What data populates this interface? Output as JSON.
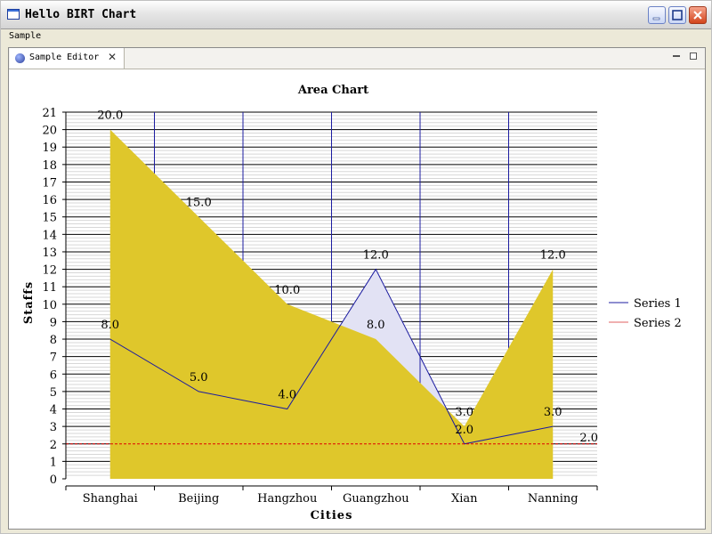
{
  "window": {
    "title": "Hello BIRT Chart"
  },
  "menu": {
    "items": [
      "Sample"
    ]
  },
  "editor": {
    "tab_label": "Sample Editor"
  },
  "colors": {
    "area_fill": "#dfc72b",
    "series1_line": "#1c1ca0",
    "series2_line": "#e06060",
    "threshold_line": "#e00000",
    "grid_line": "#000000",
    "column_line": "#1c1ca0",
    "blue_fill": "#e2e2f4"
  },
  "chart_data": {
    "type": "area",
    "title": "Area Chart",
    "xlabel": "Cities",
    "ylabel": "Staffs",
    "categories": [
      "Shanghai",
      "Beijing",
      "Hangzhou",
      "Guangzhou",
      "Xian",
      "Nanning"
    ],
    "ylim": [
      0,
      21
    ],
    "yticks": [
      "0",
      "1",
      "2",
      "3",
      "4",
      "5",
      "6",
      "7",
      "8",
      "9",
      "10",
      "11",
      "12",
      "13",
      "14",
      "15",
      "16",
      "17",
      "18",
      "19",
      "20",
      "21"
    ],
    "series": [
      {
        "name": "Series 1",
        "values": [
          8,
          5,
          4,
          12,
          2,
          3
        ],
        "labels": [
          "8.0",
          "5.0",
          "4.0",
          "12.0",
          "2.0",
          "3.0"
        ]
      },
      {
        "name": "Series 2",
        "values": [
          20,
          15,
          10,
          8,
          3,
          12
        ],
        "labels": [
          "20.0",
          "15.0",
          "10.0",
          "8.0",
          "3.0",
          "12.0"
        ]
      }
    ],
    "marker_line": {
      "value": 2,
      "label": "2.0"
    },
    "legend_position": "right",
    "grid": true
  }
}
